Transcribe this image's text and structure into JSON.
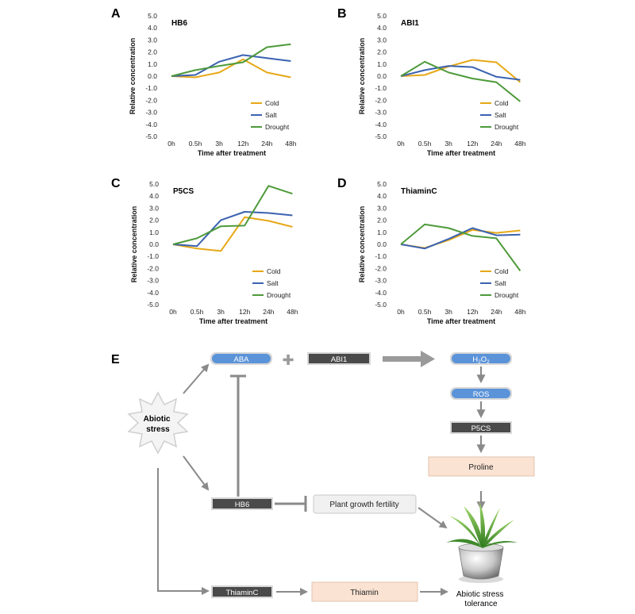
{
  "chart_data": [
    {
      "panel": "A",
      "type": "line",
      "title": "HB6",
      "categories": [
        "0h",
        "0.5h",
        "3h",
        "12h",
        "24h",
        "48h"
      ],
      "xlabel": "Time after treatment",
      "ylabel": "Relative concentration",
      "ylim": [
        -5.0,
        5.0
      ],
      "yticks": [
        "5.0",
        "4.0",
        "3.0",
        "2.0",
        "1.0",
        "0.0",
        "-1.0",
        "-2.0",
        "-3.0",
        "-4.0",
        "-5.0"
      ],
      "series": [
        {
          "name": "Cold",
          "color": "#E6A817",
          "values": [
            0.0,
            -0.1,
            0.3,
            1.4,
            0.3,
            -0.1
          ]
        },
        {
          "name": "Salt",
          "color": "#3A62B0",
          "values": [
            0.0,
            0.1,
            1.2,
            1.75,
            1.5,
            1.25
          ]
        },
        {
          "name": "Drought",
          "color": "#4E9A3A",
          "values": [
            0.0,
            0.5,
            0.85,
            1.15,
            2.4,
            2.65
          ]
        }
      ],
      "legend": "bottom-right"
    },
    {
      "panel": "B",
      "type": "line",
      "title": "ABI1",
      "categories": [
        "0h",
        "0.5h",
        "3h",
        "12h",
        "24h",
        "48h"
      ],
      "xlabel": "Time after treatment",
      "ylabel": "Relative concentration",
      "ylim": [
        -5.0,
        5.0
      ],
      "yticks": [
        "5.0",
        "4.0",
        "3.0",
        "2.0",
        "1.0",
        "0.0",
        "-1.0",
        "-2.0",
        "-3.0",
        "-4.0",
        "-5.0"
      ],
      "series": [
        {
          "name": "Cold",
          "color": "#E6A817",
          "values": [
            0.0,
            0.1,
            0.8,
            1.35,
            1.15,
            -0.5
          ]
        },
        {
          "name": "Salt",
          "color": "#3A62B0",
          "values": [
            0.0,
            0.5,
            0.85,
            0.75,
            -0.05,
            -0.3
          ]
        },
        {
          "name": "Drought",
          "color": "#4E9A3A",
          "values": [
            0.0,
            1.2,
            0.3,
            -0.2,
            -0.5,
            -2.1
          ]
        }
      ],
      "legend": "bottom-right"
    },
    {
      "panel": "C",
      "type": "line",
      "title": "P5CS",
      "categories": [
        "0h",
        "0.5h",
        "3h",
        "12h",
        "24h",
        "48h"
      ],
      "xlabel": "Time after treatment",
      "ylabel": "Relative concentration",
      "ylim": [
        -5.0,
        5.0
      ],
      "yticks": [
        "5.0",
        "4.0",
        "3.0",
        "2.0",
        "1.0",
        "0.0",
        "-1.0",
        "-2.0",
        "-3.0",
        "-4.0",
        "-5.0"
      ],
      "series": [
        {
          "name": "Cold",
          "color": "#E6A817",
          "values": [
            0.0,
            -0.35,
            -0.55,
            2.25,
            1.95,
            1.45
          ]
        },
        {
          "name": "Salt",
          "color": "#3A62B0",
          "values": [
            0.0,
            -0.15,
            2.0,
            2.7,
            2.6,
            2.4
          ]
        },
        {
          "name": "Drought",
          "color": "#4E9A3A",
          "values": [
            0.0,
            0.5,
            1.5,
            1.55,
            4.85,
            4.2
          ]
        }
      ],
      "legend": "bottom-right"
    },
    {
      "panel": "D",
      "type": "line",
      "title": "ThiaminC",
      "categories": [
        "0h",
        "0.5h",
        "3h",
        "12h",
        "24h",
        "48h"
      ],
      "xlabel": "Time after treatment",
      "ylabel": "Relative concentration",
      "ylim": [
        -5.0,
        5.0
      ],
      "yticks": [
        "5.0",
        "4.0",
        "3.0",
        "2.0",
        "1.0",
        "0.0",
        "-1.0",
        "-2.0",
        "-3.0",
        "-4.0",
        "-5.0"
      ],
      "series": [
        {
          "name": "Cold",
          "color": "#E6A817",
          "values": [
            0.0,
            -0.3,
            0.35,
            1.2,
            0.95,
            1.15
          ]
        },
        {
          "name": "Salt",
          "color": "#3A62B0",
          "values": [
            0.0,
            -0.35,
            0.45,
            1.35,
            0.75,
            0.8
          ]
        },
        {
          "name": "Drought",
          "color": "#4E9A3A",
          "values": [
            0.0,
            1.65,
            1.35,
            0.7,
            0.5,
            -2.2
          ]
        }
      ],
      "legend": "bottom-right"
    }
  ],
  "diagram": {
    "panel_letter": "E",
    "abiotic_stress": "Abiotic stress",
    "aba": "ABA",
    "plus_symbol": "✚",
    "abi1": "ABI1",
    "h2o2": "H",
    "h2o2_sub1": "2",
    "h2o2_mid": "O",
    "h2o2_sub2": "2",
    "ros": "ROS",
    "p5cs": "P5CS",
    "proline": "Proline",
    "hb6": "HB6",
    "plant_growth_fertility": "Plant growth fertility",
    "thiaminc": "ThiaminC",
    "thiamin": "Thiamin",
    "tolerance_line1": "Abiotic stress",
    "tolerance_line2": "tolerance",
    "colors": {
      "blue_box": "#5B93D9",
      "dark_box": "#4A4A4A",
      "peach_box": "#FBE3D3",
      "light_box": "#F0F0F0",
      "arrow": "#8A8A8A"
    }
  }
}
